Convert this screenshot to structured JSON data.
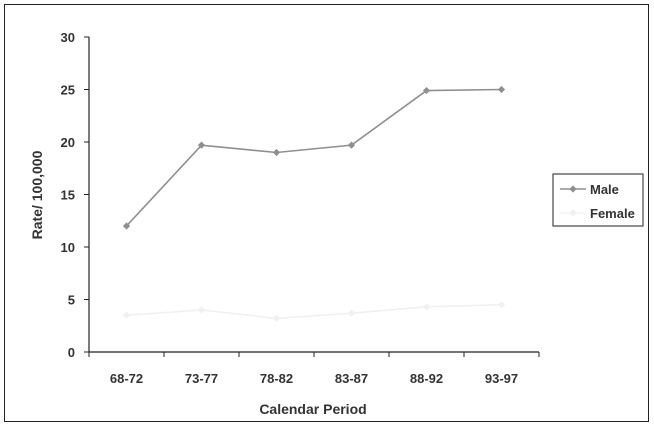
{
  "chart_data": {
    "type": "line",
    "categories": [
      "68-72",
      "73-77",
      "78-82",
      "83-87",
      "88-92",
      "93-97"
    ],
    "series": [
      {
        "name": "Male",
        "values": [
          12,
          19.7,
          19,
          19.7,
          24.9,
          25
        ],
        "color": "#8f8f8f"
      },
      {
        "name": "Female",
        "values": [
          3.5,
          4,
          3.2,
          3.7,
          4.3,
          4.5
        ],
        "color": "#f0f0f0"
      }
    ],
    "xlabel": "Calendar Period",
    "ylabel": "Rate/ 100,000",
    "ylim": [
      0,
      30
    ],
    "yticks": [
      0,
      5,
      10,
      15,
      20,
      25,
      30
    ],
    "grid": false,
    "legend": "right"
  }
}
